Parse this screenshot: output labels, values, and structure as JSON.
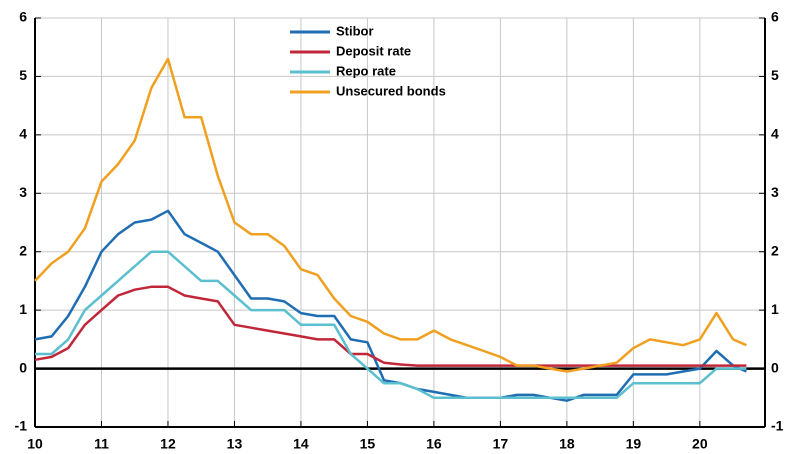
{
  "chart_data": {
    "type": "line",
    "x": [
      10,
      10.25,
      10.5,
      10.75,
      11,
      11.25,
      11.5,
      11.75,
      12,
      12.25,
      12.5,
      12.75,
      13,
      13.25,
      13.5,
      13.75,
      14,
      14.25,
      14.5,
      14.75,
      15,
      15.25,
      15.5,
      15.75,
      16,
      16.25,
      16.5,
      16.75,
      17,
      17.25,
      17.5,
      17.75,
      18,
      18.25,
      18.5,
      18.75,
      19,
      19.25,
      19.5,
      19.75,
      20,
      20.25,
      20.5,
      20.7
    ],
    "series": [
      {
        "name": "Stibor",
        "color": "#1f6db2",
        "values": [
          0.5,
          0.55,
          0.9,
          1.4,
          2.0,
          2.3,
          2.5,
          2.55,
          2.7,
          2.3,
          2.15,
          2.0,
          1.6,
          1.2,
          1.2,
          1.15,
          0.95,
          0.9,
          0.9,
          0.5,
          0.45,
          -0.2,
          -0.25,
          -0.35,
          -0.4,
          -0.45,
          -0.5,
          -0.5,
          -0.5,
          -0.45,
          -0.45,
          -0.5,
          -0.55,
          -0.45,
          -0.45,
          -0.45,
          -0.1,
          -0.1,
          -0.1,
          -0.05,
          0.0,
          0.3,
          0.05,
          -0.05
        ]
      },
      {
        "name": "Deposit rate",
        "color": "#c0283a",
        "values": [
          0.15,
          0.2,
          0.35,
          0.75,
          1.0,
          1.25,
          1.35,
          1.4,
          1.4,
          1.25,
          1.2,
          1.15,
          0.75,
          0.7,
          0.65,
          0.6,
          0.55,
          0.5,
          0.5,
          0.25,
          0.25,
          0.1,
          0.07,
          0.05,
          0.05,
          0.05,
          0.05,
          0.05,
          0.05,
          0.05,
          0.05,
          0.05,
          0.05,
          0.05,
          0.05,
          0.05,
          0.05,
          0.05,
          0.05,
          0.05,
          0.05,
          0.05,
          0.05,
          0.05
        ]
      },
      {
        "name": "Repo rate",
        "color": "#5bbfcf",
        "values": [
          0.25,
          0.25,
          0.5,
          1.0,
          1.25,
          1.5,
          1.75,
          2.0,
          2.0,
          1.75,
          1.5,
          1.5,
          1.25,
          1.0,
          1.0,
          1.0,
          0.75,
          0.75,
          0.75,
          0.25,
          0,
          -0.25,
          -0.25,
          -0.35,
          -0.5,
          -0.5,
          -0.5,
          -0.5,
          -0.5,
          -0.5,
          -0.5,
          -0.5,
          -0.5,
          -0.5,
          -0.5,
          -0.5,
          -0.25,
          -0.25,
          -0.25,
          -0.25,
          -0.25,
          0,
          0,
          0
        ]
      },
      {
        "name": "Unsecured bonds",
        "color": "#f0a020",
        "values": [
          1.5,
          1.8,
          2.0,
          2.4,
          3.2,
          3.5,
          3.9,
          4.8,
          5.3,
          4.3,
          4.3,
          3.3,
          2.5,
          2.3,
          2.3,
          2.1,
          1.7,
          1.6,
          1.2,
          0.9,
          0.8,
          0.6,
          0.5,
          0.5,
          0.65,
          0.5,
          0.4,
          0.3,
          0.2,
          0.05,
          0.05,
          0.0,
          -0.05,
          0.0,
          0.05,
          0.1,
          0.35,
          0.5,
          0.45,
          0.4,
          0.5,
          0.95,
          0.5,
          0.4
        ]
      }
    ],
    "xlim": [
      10,
      20.98
    ],
    "xticks": [
      10,
      11,
      12,
      13,
      14,
      15,
      16,
      17,
      18,
      19,
      20
    ],
    "ylim": [
      -1,
      6
    ],
    "yticks": [
      -1,
      0,
      1,
      2,
      3,
      4,
      5,
      6
    ],
    "y2lim": [
      -1,
      6
    ],
    "y2ticks": [
      -1,
      0,
      1,
      2,
      3,
      4,
      5,
      6
    ],
    "grid": true,
    "legend": "top"
  }
}
